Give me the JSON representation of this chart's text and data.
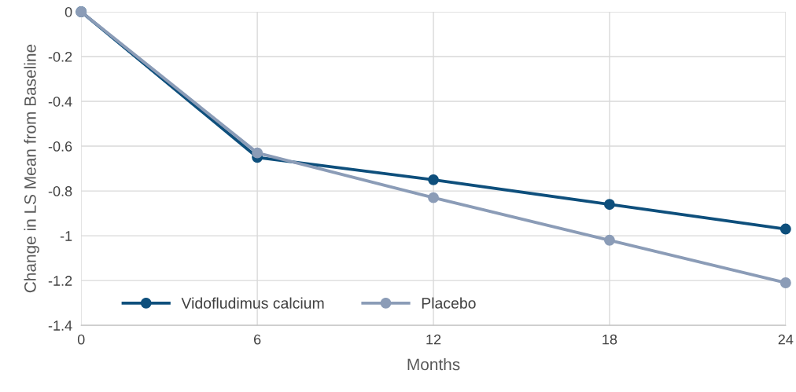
{
  "chart_data": {
    "type": "line",
    "xlabel": "Months",
    "ylabel": "Change in LS Mean from Baseline",
    "x": [
      0,
      6,
      12,
      18,
      24
    ],
    "series": [
      {
        "name": "Vidofludimus calcium",
        "color": "#0e4f7c",
        "values": [
          0,
          -0.65,
          -0.75,
          -0.86,
          -0.97
        ]
      },
      {
        "name": "Placebo",
        "color": "#8b9cb7",
        "values": [
          0,
          -0.63,
          -0.83,
          -1.02,
          -1.21
        ]
      }
    ],
    "xlim": [
      0,
      24
    ],
    "xticks": [
      0,
      6,
      12,
      18,
      24
    ],
    "ylim": [
      -1.4,
      0
    ],
    "yticks": [
      0,
      -0.2,
      -0.4,
      -0.6,
      -0.8,
      -1,
      -1.2,
      -1.4
    ],
    "grid": true,
    "legend": "bottom left",
    "marker": "circle",
    "line_style": "solid"
  }
}
